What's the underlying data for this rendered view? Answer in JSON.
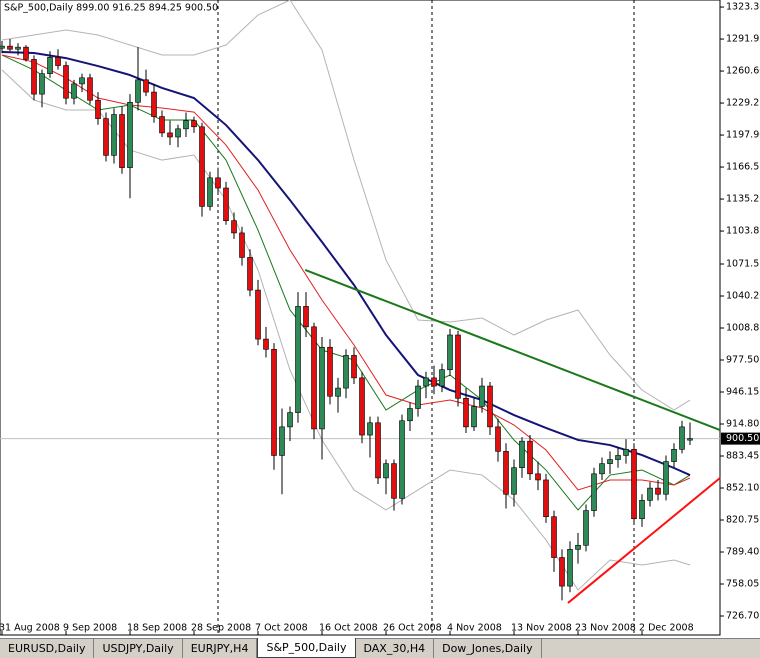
{
  "header": "S&P_500,Daily  899.00 916.25 894.25 900.50",
  "chart_data": {
    "type": "candlestick",
    "ylim": [
      708.1,
      1330.2
    ],
    "yticks": [
      {
        "value": 1323.3,
        "label": "1323.30"
      },
      {
        "value": 1291.95,
        "label": "1291.95"
      },
      {
        "value": 1260.6,
        "label": "1260.60"
      },
      {
        "value": 1229.25,
        "label": "1229.25"
      },
      {
        "value": 1197.9,
        "label": "1197.90"
      },
      {
        "value": 1166.55,
        "label": "1166.55"
      },
      {
        "value": 1135.2,
        "label": "1135.20"
      },
      {
        "value": 1103.85,
        "label": "1103.85"
      },
      {
        "value": 1071.55,
        "label": "1071.55"
      },
      {
        "value": 1040.2,
        "label": "1040.20"
      },
      {
        "value": 1008.85,
        "label": "1008.85"
      },
      {
        "value": 977.5,
        "label": "977.50"
      },
      {
        "value": 946.15,
        "label": "946.15"
      },
      {
        "value": 914.8,
        "label": "914.80"
      },
      {
        "value": 883.45,
        "label": "883.45"
      },
      {
        "value": 852.1,
        "label": "852.10"
      },
      {
        "value": 820.75,
        "label": "820.75"
      },
      {
        "value": 789.4,
        "label": "789.40"
      },
      {
        "value": 758.05,
        "label": "758.05"
      },
      {
        "value": 726.7,
        "label": "726.70"
      }
    ],
    "categories": [
      "31 Aug 2008",
      null,
      null,
      null,
      null,
      null,
      null,
      null,
      "9 Sep 2008",
      null,
      null,
      null,
      null,
      null,
      null,
      null,
      "18 Sep 2008",
      null,
      null,
      null,
      null,
      null,
      null,
      null,
      "28 Sep 2008",
      null,
      null,
      null,
      null,
      null,
      null,
      null,
      "7 Oct 2008",
      null,
      null,
      null,
      null,
      null,
      null,
      null,
      "16 Oct 2008",
      null,
      null,
      null,
      null,
      null,
      null,
      null,
      "26 Oct 2008",
      null,
      null,
      null,
      null,
      null,
      null,
      null,
      "4 Nov 2008",
      null,
      null,
      null,
      null,
      null,
      null,
      null,
      "13 Nov 2008",
      null,
      null,
      null,
      null,
      null,
      null,
      null,
      "23 Nov 2008",
      null,
      null,
      null,
      null,
      null,
      null,
      null,
      "2 Dec 2008",
      null,
      null,
      null,
      null,
      null,
      null
    ],
    "up_color": "#2e8b57",
    "down_color": "#e01010",
    "candles": [
      [
        1283,
        1290,
        1278,
        1285
      ],
      [
        1285,
        1292,
        1280,
        1282
      ],
      [
        1282,
        1288,
        1276,
        1284
      ],
      [
        1284,
        1286,
        1270,
        1272
      ],
      [
        1272,
        1276,
        1232,
        1238
      ],
      [
        1238,
        1262,
        1225,
        1258
      ],
      [
        1258,
        1280,
        1254,
        1274
      ],
      [
        1274,
        1282,
        1262,
        1266
      ],
      [
        1266,
        1270,
        1228,
        1234
      ],
      [
        1234,
        1252,
        1228,
        1248
      ],
      [
        1248,
        1258,
        1240,
        1254
      ],
      [
        1254,
        1258,
        1228,
        1232
      ],
      [
        1232,
        1240,
        1208,
        1214
      ],
      [
        1214,
        1220,
        1172,
        1178
      ],
      [
        1178,
        1224,
        1170,
        1218
      ],
      [
        1218,
        1226,
        1160,
        1166
      ],
      [
        1166,
        1238,
        1136,
        1230
      ],
      [
        1230,
        1284,
        1222,
        1252
      ],
      [
        1252,
        1262,
        1236,
        1240
      ],
      [
        1240,
        1248,
        1210,
        1216
      ],
      [
        1216,
        1222,
        1196,
        1200
      ],
      [
        1200,
        1212,
        1188,
        1196
      ],
      [
        1196,
        1208,
        1186,
        1204
      ],
      [
        1204,
        1220,
        1196,
        1212
      ],
      [
        1212,
        1216,
        1200,
        1206
      ],
      [
        1206,
        1210,
        1118,
        1128
      ],
      [
        1128,
        1162,
        1124,
        1156
      ],
      [
        1156,
        1166,
        1140,
        1146
      ],
      [
        1146,
        1152,
        1110,
        1114
      ],
      [
        1114,
        1122,
        1096,
        1102
      ],
      [
        1102,
        1108,
        1070,
        1078
      ],
      [
        1078,
        1086,
        1040,
        1046
      ],
      [
        1046,
        1056,
        992,
        998
      ],
      [
        998,
        1010,
        980,
        988
      ],
      [
        988,
        994,
        870,
        884
      ],
      [
        884,
        930,
        846,
        912
      ],
      [
        912,
        932,
        898,
        926
      ],
      [
        926,
        1044,
        916,
        1030
      ],
      [
        1030,
        1044,
        1000,
        1010
      ],
      [
        1010,
        1014,
        900,
        910
      ],
      [
        910,
        1000,
        880,
        990
      ],
      [
        990,
        998,
        934,
        942
      ],
      [
        942,
        960,
        926,
        950
      ],
      [
        950,
        988,
        940,
        982
      ],
      [
        982,
        990,
        954,
        960
      ],
      [
        960,
        966,
        896,
        904
      ],
      [
        904,
        922,
        882,
        916
      ],
      [
        916,
        922,
        856,
        862
      ],
      [
        862,
        880,
        846,
        876
      ],
      [
        876,
        880,
        830,
        842
      ],
      [
        842,
        924,
        836,
        918
      ],
      [
        918,
        936,
        908,
        930
      ],
      [
        930,
        958,
        922,
        952
      ],
      [
        952,
        966,
        940,
        960
      ],
      [
        960,
        972,
        944,
        952
      ],
      [
        952,
        974,
        946,
        968
      ],
      [
        968,
        1008,
        962,
        1002
      ],
      [
        1002,
        1006,
        932,
        940
      ],
      [
        940,
        950,
        906,
        912
      ],
      [
        912,
        940,
        908,
        932
      ],
      [
        932,
        960,
        926,
        952
      ],
      [
        952,
        956,
        904,
        912
      ],
      [
        912,
        920,
        878,
        888
      ],
      [
        888,
        896,
        832,
        846
      ],
      [
        846,
        880,
        834,
        872
      ],
      [
        872,
        902,
        862,
        898
      ],
      [
        898,
        904,
        860,
        866
      ],
      [
        866,
        878,
        850,
        860
      ],
      [
        860,
        866,
        818,
        824
      ],
      [
        824,
        830,
        770,
        784
      ],
      [
        784,
        792,
        742,
        756
      ],
      [
        756,
        800,
        750,
        792
      ],
      [
        792,
        808,
        778,
        796
      ],
      [
        796,
        836,
        790,
        830
      ],
      [
        830,
        872,
        824,
        866
      ],
      [
        866,
        882,
        860,
        876
      ],
      [
        876,
        888,
        866,
        880
      ],
      [
        880,
        892,
        872,
        884
      ],
      [
        884,
        900,
        876,
        890
      ],
      [
        890,
        896,
        816,
        822
      ],
      [
        822,
        846,
        814,
        840
      ],
      [
        840,
        858,
        834,
        852
      ],
      [
        852,
        860,
        840,
        846
      ],
      [
        846,
        884,
        840,
        878
      ],
      [
        878,
        896,
        872,
        890
      ],
      [
        890,
        918,
        886,
        912
      ],
      [
        899,
        916.25,
        894.25,
        900.5
      ]
    ],
    "series": [
      {
        "color": "#b4b4b4",
        "x": [
          0,
          4,
          8,
          12,
          16,
          20,
          24,
          28,
          32,
          36,
          40,
          44,
          48,
          52,
          56,
          60,
          64,
          68,
          72,
          76,
          80,
          84,
          86
        ],
        "values": [
          1291.0,
          1295.9,
          1300.8,
          1295.9,
          1286.1,
          1276.3,
          1276.3,
          1286.1,
          1315.5,
          1330.2,
          1281.2,
          1173.4,
          1075.5,
          1016.7,
          1014.7,
          1018.6,
          1002.0,
          1016.7,
          1026.5,
          982.4,
          948.1,
          928.5,
          938.3
        ]
      },
      {
        "color": "#b4b4b4",
        "x": [
          0,
          4,
          8,
          12,
          16,
          20,
          24,
          28,
          32,
          36,
          40,
          44,
          48,
          52,
          56,
          60,
          64,
          68,
          72,
          76,
          80,
          84,
          86
        ],
        "values": [
          1261.6,
          1232.2,
          1222.4,
          1222.4,
          1183.2,
          1173.4,
          1178.3,
          1134.2,
          1065.7,
          967.7,
          899.1,
          850.2,
          830.6,
          850.2,
          869.7,
          864.8,
          840.4,
          801.2,
          752.2,
          781.6,
          776.7,
          781.6,
          776.7
        ]
      },
      {
        "color": "#1a7a1a",
        "x": [
          0,
          4,
          8,
          12,
          16,
          20,
          24,
          28,
          32,
          36,
          40,
          44,
          48,
          52,
          56,
          60,
          64,
          68,
          72,
          76,
          80,
          84,
          86
        ],
        "values": [
          1276.3,
          1261.6,
          1242.0,
          1222.4,
          1227.3,
          1212.6,
          1212.6,
          1173.4,
          1104.8,
          1026.5,
          987.3,
          977.5,
          928.5,
          948.1,
          962.8,
          938.3,
          899.1,
          869.7,
          830.6,
          864.8,
          869.7,
          855.1,
          864.8
        ]
      },
      {
        "color": "#e02020",
        "x": [
          0,
          4,
          8,
          12,
          16,
          20,
          24,
          28,
          32,
          36,
          40,
          44,
          48,
          52,
          56,
          60,
          64,
          68,
          72,
          76,
          80,
          84,
          86
        ],
        "values": [
          1276.3,
          1269.4,
          1253.8,
          1234.2,
          1227.3,
          1224.4,
          1220.4,
          1188.1,
          1144.0,
          1085.3,
          1036.3,
          992.2,
          943.2,
          933.4,
          938.3,
          930.5,
          913.8,
          889.3,
          850.2,
          859.9,
          859.9,
          855.1,
          861.9
        ]
      },
      {
        "color": "#141478",
        "x": [
          0,
          4,
          8,
          12,
          16,
          20,
          24,
          28,
          32,
          36,
          40,
          44,
          48,
          52,
          56,
          60,
          64,
          68,
          72,
          76,
          80,
          84,
          86
        ],
        "values": [
          1279.2,
          1278.3,
          1273.3,
          1265.5,
          1256.7,
          1244.0,
          1234.2,
          1207.7,
          1173.4,
          1134.2,
          1093.1,
          1051.0,
          1002.0,
          962.8,
          948.1,
          938.3,
          923.6,
          911.0,
          899.2,
          894.2,
          884.4,
          871.7,
          864.8
        ]
      }
    ],
    "trendlines": [
      {
        "color": "#1a7a1a",
        "x": [
          37.9,
          89.75
        ],
        "values": [
          1065.7,
          908.9
        ]
      },
      {
        "color": "#ff1010",
        "x": [
          70.75,
          89.75
        ],
        "values": [
          739.5,
          861.9
        ]
      }
    ],
    "price_label": {
      "value": 900.5,
      "label": "900.50"
    }
  },
  "tabs": [
    {
      "label": "EURUSD,Daily"
    },
    {
      "label": "USDJPY,Daily"
    },
    {
      "label": "EURJPY,H4"
    },
    {
      "label": "S&P_500,Daily",
      "active": true
    },
    {
      "label": "DAX_30,H4"
    },
    {
      "label": "Dow_Jones,Daily"
    }
  ]
}
